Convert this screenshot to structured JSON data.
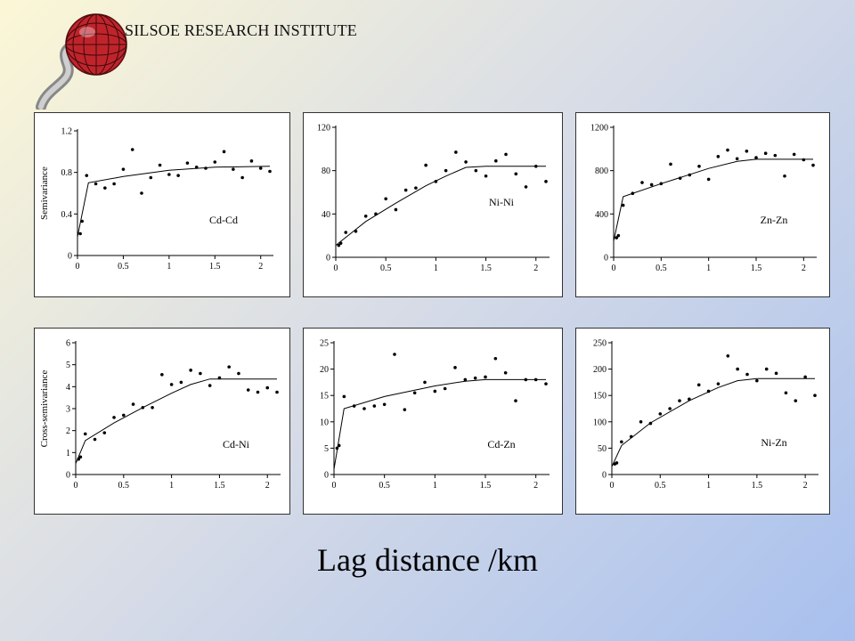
{
  "header": {
    "institute": "SILSOE RESEARCH INSTITUTE"
  },
  "xlabel": "Lag distance /km",
  "colors": {
    "logo_globe": "#c0242b",
    "logo_road": "#8a8a8a",
    "points": "#000000"
  },
  "chart_data": [
    {
      "type": "scatter",
      "label": "Cd-Cd",
      "ylabel": "Semivariance",
      "xlim": [
        0,
        2.1
      ],
      "ylim": [
        0,
        1.2
      ],
      "xticks": [
        "0",
        "0.5",
        "1",
        "1.5",
        "2"
      ],
      "yticks": [
        "0",
        "0.4",
        "0.8",
        "1.2"
      ],
      "points": [
        [
          0.03,
          0.21
        ],
        [
          0.05,
          0.33
        ],
        [
          0.1,
          0.77
        ],
        [
          0.2,
          0.69
        ],
        [
          0.3,
          0.65
        ],
        [
          0.4,
          0.69
        ],
        [
          0.5,
          0.83
        ],
        [
          0.6,
          1.02
        ],
        [
          0.7,
          0.6
        ],
        [
          0.8,
          0.75
        ],
        [
          0.9,
          0.87
        ],
        [
          1.0,
          0.78
        ],
        [
          1.1,
          0.77
        ],
        [
          1.2,
          0.89
        ],
        [
          1.3,
          0.85
        ],
        [
          1.4,
          0.84
        ],
        [
          1.5,
          0.9
        ],
        [
          1.6,
          1.0
        ],
        [
          1.7,
          0.83
        ],
        [
          1.8,
          0.75
        ],
        [
          1.9,
          0.91
        ],
        [
          2.0,
          0.84
        ],
        [
          2.1,
          0.81
        ]
      ],
      "model": [
        [
          0,
          0.18
        ],
        [
          0.12,
          0.7
        ],
        [
          0.5,
          0.76
        ],
        [
          1.0,
          0.82
        ],
        [
          1.5,
          0.85
        ],
        [
          2.1,
          0.86
        ]
      ]
    },
    {
      "type": "scatter",
      "label": "Ni-Ni",
      "ylabel": "",
      "xlim": [
        0,
        2.1
      ],
      "ylim": [
        0,
        120
      ],
      "xticks": [
        "0",
        "0.5",
        "1",
        "1.5",
        "2"
      ],
      "yticks": [
        "0",
        "40",
        "80",
        "120"
      ],
      "points": [
        [
          0.03,
          11
        ],
        [
          0.05,
          13
        ],
        [
          0.1,
          23
        ],
        [
          0.2,
          24
        ],
        [
          0.3,
          38
        ],
        [
          0.4,
          40
        ],
        [
          0.5,
          54
        ],
        [
          0.6,
          44
        ],
        [
          0.7,
          62
        ],
        [
          0.8,
          64
        ],
        [
          0.9,
          85
        ],
        [
          1.0,
          70
        ],
        [
          1.1,
          80
        ],
        [
          1.2,
          97
        ],
        [
          1.3,
          88
        ],
        [
          1.4,
          80
        ],
        [
          1.5,
          75
        ],
        [
          1.6,
          89
        ],
        [
          1.7,
          95
        ],
        [
          1.8,
          77
        ],
        [
          1.9,
          65
        ],
        [
          2.0,
          84
        ],
        [
          2.1,
          70
        ]
      ],
      "model": [
        [
          0,
          11
        ],
        [
          0.3,
          33
        ],
        [
          0.6,
          50
        ],
        [
          0.9,
          66
        ],
        [
          1.1,
          75
        ],
        [
          1.3,
          83
        ],
        [
          1.5,
          84
        ],
        [
          2.1,
          84
        ]
      ]
    },
    {
      "type": "scatter",
      "label": "Zn-Zn",
      "ylabel": "",
      "xlim": [
        0,
        2.1
      ],
      "ylim": [
        0,
        1200
      ],
      "xticks": [
        "0",
        "0.5",
        "1",
        "1.5",
        "2"
      ],
      "yticks": [
        "0",
        "400",
        "800",
        "1200"
      ],
      "points": [
        [
          0.03,
          180
        ],
        [
          0.05,
          200
        ],
        [
          0.1,
          480
        ],
        [
          0.2,
          590
        ],
        [
          0.3,
          690
        ],
        [
          0.4,
          670
        ],
        [
          0.5,
          680
        ],
        [
          0.6,
          860
        ],
        [
          0.7,
          730
        ],
        [
          0.8,
          760
        ],
        [
          0.9,
          840
        ],
        [
          1.0,
          720
        ],
        [
          1.1,
          930
        ],
        [
          1.2,
          990
        ],
        [
          1.3,
          910
        ],
        [
          1.4,
          980
        ],
        [
          1.5,
          920
        ],
        [
          1.6,
          960
        ],
        [
          1.7,
          940
        ],
        [
          1.8,
          750
        ],
        [
          1.9,
          950
        ],
        [
          2.0,
          900
        ],
        [
          2.1,
          850
        ]
      ],
      "model": [
        [
          0,
          150
        ],
        [
          0.1,
          560
        ],
        [
          0.5,
          680
        ],
        [
          1.0,
          820
        ],
        [
          1.3,
          885
        ],
        [
          1.5,
          905
        ],
        [
          2.1,
          905
        ]
      ]
    },
    {
      "type": "scatter",
      "label": "Cd-Ni",
      "ylabel": "Cross-semivariance",
      "xlim": [
        0,
        2.1
      ],
      "ylim": [
        0,
        6
      ],
      "xticks": [
        "0",
        "0.5",
        "1",
        "1.5",
        "2"
      ],
      "yticks": [
        "0",
        "1",
        "2",
        "3",
        "4",
        "5",
        "6"
      ],
      "points": [
        [
          0.03,
          0.7
        ],
        [
          0.05,
          0.8
        ],
        [
          0.1,
          1.85
        ],
        [
          0.2,
          1.6
        ],
        [
          0.3,
          1.9
        ],
        [
          0.4,
          2.6
        ],
        [
          0.5,
          2.7
        ],
        [
          0.6,
          3.2
        ],
        [
          0.7,
          3.05
        ],
        [
          0.8,
          3.05
        ],
        [
          0.9,
          4.55
        ],
        [
          1.0,
          4.1
        ],
        [
          1.1,
          4.2
        ],
        [
          1.2,
          4.75
        ],
        [
          1.3,
          4.6
        ],
        [
          1.4,
          4.05
        ],
        [
          1.5,
          4.4
        ],
        [
          1.6,
          4.9
        ],
        [
          1.7,
          4.6
        ],
        [
          1.8,
          3.85
        ],
        [
          1.9,
          3.75
        ],
        [
          2.0,
          3.95
        ],
        [
          2.1,
          3.75
        ]
      ],
      "model": [
        [
          0,
          0.5
        ],
        [
          0.1,
          1.55
        ],
        [
          0.4,
          2.35
        ],
        [
          0.7,
          3.05
        ],
        [
          1.0,
          3.7
        ],
        [
          1.2,
          4.1
        ],
        [
          1.4,
          4.35
        ],
        [
          2.1,
          4.35
        ]
      ]
    },
    {
      "type": "scatter",
      "label": "Cd-Zn",
      "ylabel": "",
      "xlim": [
        0,
        2.1
      ],
      "ylim": [
        0,
        25
      ],
      "xticks": [
        "0",
        "0.5",
        "1",
        "1.5",
        "2"
      ],
      "yticks": [
        "0",
        "5",
        "10",
        "15",
        "20",
        "25"
      ],
      "points": [
        [
          0.03,
          5
        ],
        [
          0.05,
          5.5
        ],
        [
          0.1,
          14.8
        ],
        [
          0.2,
          13
        ],
        [
          0.3,
          12.5
        ],
        [
          0.4,
          13
        ],
        [
          0.5,
          13.3
        ],
        [
          0.6,
          22.8
        ],
        [
          0.7,
          12.3
        ],
        [
          0.8,
          15.5
        ],
        [
          0.9,
          17.5
        ],
        [
          1.0,
          15.8
        ],
        [
          1.1,
          16.3
        ],
        [
          1.2,
          20.3
        ],
        [
          1.3,
          18
        ],
        [
          1.4,
          18.3
        ],
        [
          1.5,
          18.5
        ],
        [
          1.6,
          22
        ],
        [
          1.7,
          19.3
        ],
        [
          1.8,
          14
        ],
        [
          1.9,
          18
        ],
        [
          2.0,
          18
        ],
        [
          2.1,
          17.2
        ]
      ],
      "model": [
        [
          0,
          1
        ],
        [
          0.1,
          12.5
        ],
        [
          0.5,
          14.8
        ],
        [
          1.0,
          16.8
        ],
        [
          1.3,
          17.7
        ],
        [
          1.5,
          18
        ],
        [
          2.1,
          18
        ]
      ]
    },
    {
      "type": "scatter",
      "label": "Ni-Zn",
      "ylabel": "",
      "xlim": [
        0,
        2.1
      ],
      "ylim": [
        0,
        250
      ],
      "xticks": [
        "0",
        "0.5",
        "1",
        "1.5",
        "2"
      ],
      "yticks": [
        "0",
        "50",
        "100",
        "150",
        "200",
        "250"
      ],
      "points": [
        [
          0.03,
          20
        ],
        [
          0.05,
          22
        ],
        [
          0.1,
          62
        ],
        [
          0.2,
          72
        ],
        [
          0.3,
          100
        ],
        [
          0.4,
          97
        ],
        [
          0.5,
          115
        ],
        [
          0.6,
          125
        ],
        [
          0.7,
          140
        ],
        [
          0.8,
          143
        ],
        [
          0.9,
          170
        ],
        [
          1.0,
          158
        ],
        [
          1.1,
          172
        ],
        [
          1.2,
          225
        ],
        [
          1.3,
          200
        ],
        [
          1.4,
          190
        ],
        [
          1.5,
          178
        ],
        [
          1.6,
          200
        ],
        [
          1.7,
          192
        ],
        [
          1.8,
          155
        ],
        [
          1.9,
          140
        ],
        [
          2.0,
          185
        ],
        [
          2.1,
          150
        ]
      ],
      "model": [
        [
          0,
          15
        ],
        [
          0.1,
          55
        ],
        [
          0.4,
          98
        ],
        [
          0.8,
          140
        ],
        [
          1.1,
          165
        ],
        [
          1.3,
          178
        ],
        [
          1.5,
          182
        ],
        [
          2.1,
          182
        ]
      ]
    }
  ]
}
